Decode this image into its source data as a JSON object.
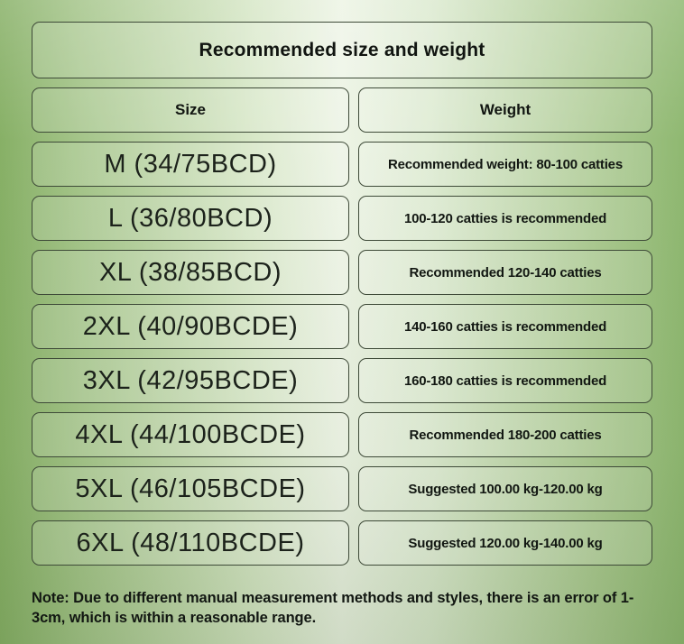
{
  "title": "Recommended size and weight",
  "columns": {
    "size": "Size",
    "weight": "Weight"
  },
  "rows": [
    {
      "size": "M (34/75BCD)",
      "weight": "Recommended weight: 80-100 catties"
    },
    {
      "size": "L (36/80BCD)",
      "weight": "100-120 catties is recommended"
    },
    {
      "size": "XL (38/85BCD)",
      "weight": "Recommended 120-140 catties"
    },
    {
      "size": "2XL (40/90BCDE)",
      "weight": "140-160 catties is recommended"
    },
    {
      "size": "3XL (42/95BCDE)",
      "weight": "160-180 catties is recommended"
    },
    {
      "size": "4XL (44/100BCDE)",
      "weight": "Recommended 180-200 catties"
    },
    {
      "size": "5XL (46/105BCDE)",
      "weight": "Suggested 100.00 kg-120.00 kg"
    },
    {
      "size": "6XL (48/110BCDE)",
      "weight": "Suggested 120.00 kg-140.00 kg"
    }
  ],
  "note": "Note: Due to different manual measurement methods and styles, there is an error of 1-3cm, which is within a reasonable range.",
  "colors": {
    "background_edge": "#8fb871",
    "background_center": "#edf4e5",
    "box_border": "#3e4a38",
    "text": "#121712"
  },
  "chart_data": {
    "type": "table",
    "title": "Recommended size and weight",
    "headers": [
      "Size",
      "Weight"
    ],
    "rows": [
      [
        "M (34/75BCD)",
        "Recommended weight: 80-100 catties"
      ],
      [
        "L (36/80BCD)",
        "100-120 catties is recommended"
      ],
      [
        "XL (38/85BCD)",
        "Recommended 120-140 catties"
      ],
      [
        "2XL (40/90BCDE)",
        "140-160 catties is recommended"
      ],
      [
        "3XL (42/95BCDE)",
        "160-180 catties is recommended"
      ],
      [
        "4XL (44/100BCDE)",
        "Recommended 180-200 catties"
      ],
      [
        "5XL (46/105BCDE)",
        "Suggested 100.00 kg-120.00 kg"
      ],
      [
        "6XL (48/110BCDE)",
        "Suggested 120.00 kg-140.00 kg"
      ]
    ],
    "footnote": "Note: Due to different manual measurement methods and styles, there is an error of 1-3cm, which is within a reasonable range."
  }
}
